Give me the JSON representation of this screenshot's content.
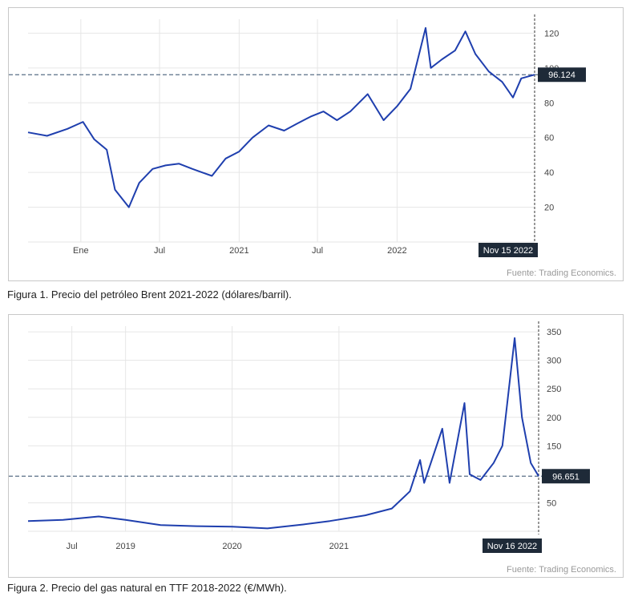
{
  "charts": [
    {
      "caption": "Figura 1. Precio del petróleo Brent 2021-2022 (dólares/barril).",
      "source": "Fuente: Trading Economics.",
      "current_value": "96.124",
      "date_box": "Nov 15 2022"
    },
    {
      "caption": "Figura 2. Precio del gas natural en TTF 2018-2022 (€/MWh).",
      "source": "Fuente: Trading Economics.",
      "current_value": "96.651",
      "date_box": "Nov 16 2022"
    }
  ],
  "chart_data": [
    {
      "type": "line",
      "title": "",
      "xlabel": "",
      "ylabel": "",
      "x_ticks": [
        "Ene",
        "Jul",
        "2021",
        "Jul",
        "2022",
        "Nov 15 2022"
      ],
      "x_tick_dates": [
        "2020-01-01",
        "2020-07-01",
        "2021-01-01",
        "2021-07-01",
        "2022-01-01",
        "2022-11-15"
      ],
      "y_ticks": [
        20,
        40,
        60,
        80,
        100,
        120
      ],
      "ylim": [
        0,
        128
      ],
      "xlim": [
        "2019-09-01",
        "2022-11-15"
      ],
      "grid": true,
      "reference_line": 96.124,
      "series": [
        {
          "color": "#1f3fae",
          "x": [
            "2019-09-01",
            "2019-10-15",
            "2019-12-01",
            "2020-01-06",
            "2020-02-01",
            "2020-03-01",
            "2020-03-20",
            "2020-04-21",
            "2020-05-15",
            "2020-06-15",
            "2020-07-15",
            "2020-08-15",
            "2020-09-15",
            "2020-10-30",
            "2020-12-01",
            "2021-01-01",
            "2021-02-01",
            "2021-03-10",
            "2021-04-15",
            "2021-05-15",
            "2021-06-15",
            "2021-07-15",
            "2021-08-15",
            "2021-09-15",
            "2021-10-25",
            "2021-12-01",
            "2022-01-01",
            "2022-02-01",
            "2022-03-08",
            "2022-03-20",
            "2022-04-15",
            "2022-05-15",
            "2022-06-08",
            "2022-07-01",
            "2022-08-01",
            "2022-09-01",
            "2022-09-26",
            "2022-10-15",
            "2022-11-15"
          ],
          "y": [
            63,
            61,
            65,
            69,
            59,
            53,
            30,
            20,
            34,
            42,
            44,
            45,
            42,
            38,
            48,
            52,
            60,
            67,
            64,
            68,
            72,
            75,
            70,
            75,
            85,
            70,
            78,
            88,
            123,
            100,
            105,
            110,
            121,
            108,
            98,
            92,
            83,
            94,
            96.124
          ]
        }
      ]
    },
    {
      "type": "line",
      "title": "",
      "xlabel": "",
      "ylabel": "",
      "x_ticks": [
        "Jul",
        "2019",
        "2020",
        "2021",
        "Nov 16 2022"
      ],
      "x_tick_dates": [
        "2018-07-01",
        "2019-01-01",
        "2020-01-01",
        "2021-01-01",
        "2022-11-16"
      ],
      "y_ticks": [
        50,
        150,
        200,
        250,
        300,
        350
      ],
      "ylim": [
        0,
        360
      ],
      "xlim": [
        "2018-02-01",
        "2022-11-16"
      ],
      "grid": true,
      "reference_line": 96.651,
      "series": [
        {
          "color": "#1f3fae",
          "x": [
            "2018-02-01",
            "2018-06-01",
            "2018-10-01",
            "2019-01-01",
            "2019-05-01",
            "2019-09-01",
            "2020-01-01",
            "2020-05-01",
            "2020-09-01",
            "2020-12-01",
            "2021-04-01",
            "2021-07-01",
            "2021-09-01",
            "2021-10-06",
            "2021-10-20",
            "2021-12-21",
            "2022-01-15",
            "2022-03-07",
            "2022-03-25",
            "2022-05-01",
            "2022-06-15",
            "2022-07-15",
            "2022-08-26",
            "2022-09-20",
            "2022-10-20",
            "2022-11-16"
          ],
          "y": [
            18,
            20,
            26,
            20,
            11,
            9,
            8,
            5,
            12,
            18,
            28,
            40,
            70,
            125,
            85,
            180,
            85,
            225,
            100,
            90,
            120,
            150,
            339,
            200,
            120,
            96.651
          ]
        }
      ]
    }
  ]
}
